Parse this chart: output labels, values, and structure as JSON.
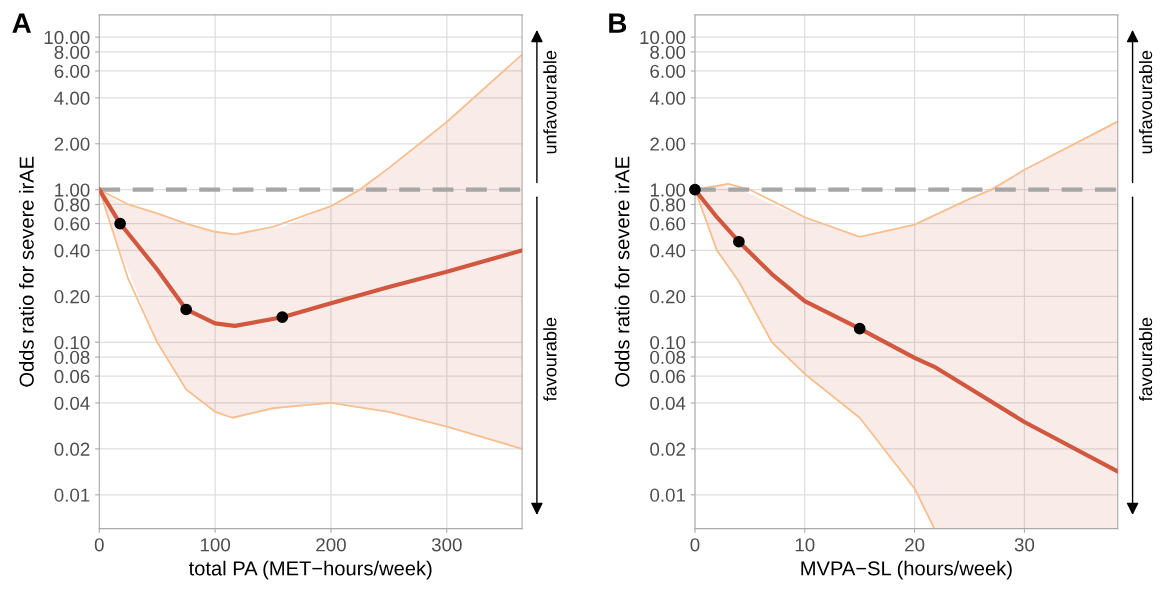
{
  "chart_data": [
    {
      "type": "line",
      "xlabel": "total PA (MET−hours/week)",
      "ylabel": "Odds ratio for severe irAE",
      "log": "y",
      "grid": true,
      "legend": false,
      "xlim": [
        0,
        365
      ],
      "xticks": [
        0,
        100,
        200,
        300
      ],
      "ylim": [
        0.006,
        14
      ],
      "yticks": [
        0.01,
        0.02,
        0.04,
        0.06,
        0.08,
        {
          "value": 0.1,
          "label": "0.10"
        },
        {
          "value": 0.2,
          "label": "0.20"
        },
        {
          "value": 0.4,
          "label": "0.40"
        },
        {
          "value": 0.6,
          "label": "0.60"
        },
        {
          "value": 0.8,
          "label": "0.80"
        },
        {
          "value": 1,
          "label": "1.00"
        },
        {
          "value": 2,
          "label": "2.00"
        },
        {
          "value": 4,
          "label": "4.00"
        },
        {
          "value": 6,
          "label": "6.00"
        },
        {
          "value": 8,
          "label": "8.00"
        },
        {
          "value": 10,
          "label": "10.00"
        }
      ],
      "ref_lines": [
        {
          "axis": "y",
          "value": 1,
          "color": "#a6a6a6",
          "line_style": "dashed"
        }
      ],
      "annotations": [
        "A",
        "unfavourable",
        "favourable"
      ],
      "series": [
        {
          "color": "#f7bf8f",
          "x": [
            0,
            25,
            50,
            75,
            100,
            115,
            150,
            200,
            250,
            300,
            365
          ],
          "values": [
            1,
            0.26,
            0.1,
            0.049,
            0.035,
            0.032,
            0.037,
            0.04,
            0.035,
            0.028,
            0.02
          ]
        },
        {
          "color": "#f7bf8f",
          "x": [
            0,
            25,
            50,
            75,
            100,
            117,
            150,
            200,
            225,
            250,
            300,
            365
          ],
          "values": [
            1,
            0.8,
            0.7,
            0.6,
            0.53,
            0.51,
            0.57,
            0.78,
            1.0,
            1.39,
            2.78,
            7.7
          ]
        },
        {
          "color": "#d1573f",
          "x": [
            0,
            18,
            50,
            75,
            100,
            117,
            158,
            200,
            250,
            300,
            365
          ],
          "values": [
            1,
            0.6,
            0.3,
            0.164,
            0.133,
            0.128,
            0.146,
            0.18,
            0.23,
            0.29,
            0.4
          ],
          "lower": [
            1,
            0.4,
            0.1,
            0.049,
            0.035,
            0.032,
            0.037,
            0.04,
            0.035,
            0.028,
            0.02
          ],
          "upper": [
            1,
            0.82,
            0.7,
            0.6,
            0.53,
            0.51,
            0.57,
            0.78,
            1.39,
            2.78,
            7.7
          ]
        },
        {
          "type": "scatter",
          "color": "#000000",
          "marker": "circle",
          "x": [
            18,
            75,
            158
          ],
          "values": [
            0.6,
            0.164,
            0.146
          ]
        }
      ]
    },
    {
      "type": "line",
      "xlabel": "MVPA−SL (hours/week)",
      "ylabel": "Odds ratio for severe irAE",
      "log": "y",
      "grid": true,
      "legend": false,
      "xlim": [
        0,
        38.5
      ],
      "xticks": [
        0,
        10,
        20,
        30
      ],
      "ylim": [
        0.006,
        14
      ],
      "yticks": [
        0.01,
        0.02,
        0.04,
        0.06,
        0.08,
        {
          "value": 0.1,
          "label": "0.10"
        },
        {
          "value": 0.2,
          "label": "0.20"
        },
        {
          "value": 0.4,
          "label": "0.40"
        },
        {
          "value": 0.6,
          "label": "0.60"
        },
        {
          "value": 0.8,
          "label": "0.80"
        },
        {
          "value": 1,
          "label": "1.00"
        },
        {
          "value": 2,
          "label": "2.00"
        },
        {
          "value": 4,
          "label": "4.00"
        },
        {
          "value": 6,
          "label": "6.00"
        },
        {
          "value": 8,
          "label": "8.00"
        },
        {
          "value": 10,
          "label": "10.00"
        }
      ],
      "ref_lines": [
        {
          "axis": "y",
          "value": 1,
          "color": "#a6a6a6",
          "line_style": "dashed"
        }
      ],
      "annotations": [
        "B",
        "unfavourable",
        "favourable"
      ],
      "series": [
        {
          "color": "#f7bf8f",
          "x": [
            0,
            2,
            4,
            7,
            10,
            15,
            20,
            21.8
          ],
          "values": [
            1,
            0.4,
            0.25,
            0.1,
            0.062,
            0.032,
            0.011,
            0.006
          ]
        },
        {
          "color": "#f7bf8f",
          "x": [
            0,
            3,
            5,
            10,
            15,
            20,
            25,
            27,
            30,
            38.5
          ],
          "values": [
            1,
            1.09,
            1.0,
            0.66,
            0.49,
            0.59,
            0.87,
            1.0,
            1.35,
            2.8
          ]
        },
        {
          "color": "#d1573f",
          "x": [
            0,
            2,
            4,
            7,
            10,
            15,
            20,
            21.8,
            25,
            30,
            38.5
          ],
          "values": [
            1,
            0.66,
            0.456,
            0.28,
            0.186,
            0.123,
            0.079,
            0.069,
            0.05,
            0.03,
            0.0142
          ],
          "lower": [
            1,
            0.4,
            0.25,
            0.1,
            0.062,
            0.032,
            0.011,
            0.006,
            0.006,
            0.006,
            0.006
          ],
          "upper": [
            1,
            1.07,
            1.02,
            0.8,
            0.66,
            0.49,
            0.59,
            0.68,
            0.87,
            1.35,
            2.8
          ]
        },
        {
          "type": "scatter",
          "color": "#000000",
          "marker": "circle",
          "x": [
            0,
            4,
            15
          ],
          "values": [
            1,
            0.456,
            0.123
          ]
        }
      ]
    }
  ]
}
